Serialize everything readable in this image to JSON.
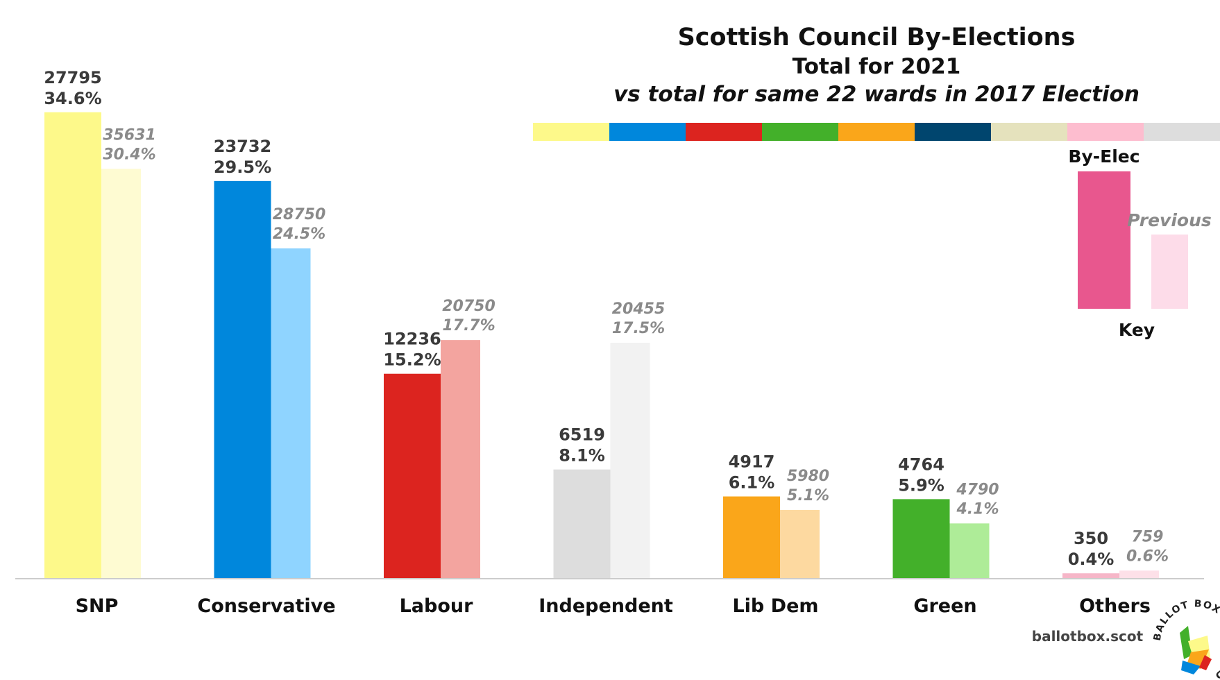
{
  "chart_data": {
    "type": "bar",
    "title": "Scottish Council By-Elections",
    "subtitle": "Total for 2021",
    "subtitle2": "vs total for same 22 wards in 2017 Election",
    "categories": [
      "SNP",
      "Conservative",
      "Labour",
      "Independent",
      "Lib Dem",
      "Green",
      "Others"
    ],
    "series": [
      {
        "name": "By-Elec",
        "votes": [
          27795,
          23732,
          12236,
          6519,
          4917,
          4764,
          350
        ],
        "values": [
          34.6,
          29.5,
          15.2,
          8.1,
          6.1,
          5.9,
          0.4
        ],
        "colors": [
          "#fdf98a",
          "#0087dc",
          "#dc241f",
          "#dddddd",
          "#faa61a",
          "#43b02a",
          "#f6b6c8"
        ]
      },
      {
        "name": "Previous",
        "votes": [
          35631,
          28750,
          20750,
          20455,
          5980,
          4790,
          759
        ],
        "values": [
          30.4,
          24.5,
          17.7,
          17.5,
          5.1,
          4.1,
          0.6
        ],
        "colors": [
          "#fefbd2",
          "#8fd4ff",
          "#f3a49f",
          "#f2f2f2",
          "#fdd9a0",
          "#aeec98",
          "#fde0e8"
        ]
      }
    ],
    "ylim": [
      0,
      36
    ],
    "xlabel": "",
    "ylabel": "",
    "grid": false,
    "legend": {
      "title": "Key",
      "position": "right",
      "new_label": "By-Elec",
      "old_label": "Previous",
      "new_color": "#e8578e",
      "old_color": "#fddce9"
    },
    "color_strip": [
      "#fdf98a",
      "#0087dc",
      "#dc241f",
      "#43b02a",
      "#faa61a",
      "#00456e",
      "#e5e2bd",
      "#fdbdcf",
      "#dddddd"
    ]
  },
  "brand": {
    "site": "ballotbox.scot",
    "logo_text": "BALLOT BOX SCOTLAND"
  }
}
